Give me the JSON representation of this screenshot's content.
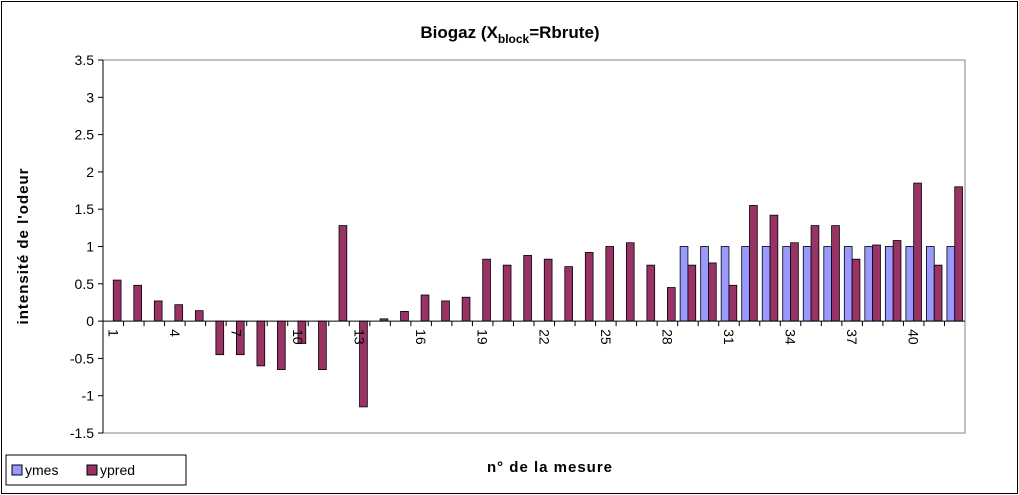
{
  "chart_data": {
    "type": "bar",
    "title_parts": [
      "Biogaz (X",
      "block",
      "=Rbrute)"
    ],
    "x_label": "n° de la mesure",
    "y_label": "intensité de l'odeur",
    "categories": [
      1,
      null,
      null,
      4,
      null,
      null,
      7,
      null,
      null,
      10,
      null,
      null,
      13,
      null,
      null,
      16,
      null,
      null,
      19,
      null,
      null,
      22,
      null,
      null,
      25,
      null,
      null,
      28,
      null,
      null,
      31,
      null,
      null,
      34,
      null,
      null,
      37,
      null,
      null,
      40,
      null,
      null
    ],
    "series": [
      {
        "name": "ymes",
        "color": "#9999ff",
        "values": [
          0,
          0,
          0,
          0,
          0,
          0,
          0,
          0,
          0,
          0,
          0,
          0,
          0,
          0,
          0,
          0,
          0,
          0,
          0,
          0,
          0,
          0,
          0,
          0,
          0,
          0,
          0,
          0,
          1,
          1,
          1,
          1,
          1,
          1,
          1,
          1,
          1,
          1,
          1,
          1,
          1,
          1
        ]
      },
      {
        "name": "ypred",
        "color": "#993366",
        "values": [
          0.55,
          0.48,
          0.27,
          0.22,
          0.14,
          -0.45,
          -0.45,
          -0.6,
          -0.65,
          -0.3,
          -0.65,
          1.28,
          -1.15,
          0.03,
          0.13,
          0.35,
          0.27,
          0.32,
          0.83,
          0.75,
          0.88,
          0.83,
          0.73,
          0.92,
          1.0,
          1.05,
          0.75,
          0.45,
          0.75,
          0.78,
          0.48,
          1.55,
          1.42,
          1.05,
          1.28,
          1.28,
          0.83,
          1.02,
          1.08,
          1.85,
          0.75,
          1.8
        ]
      }
    ],
    "ylim": [
      -1.5,
      3.5
    ],
    "yticks": [
      -1.5,
      -1,
      -0.5,
      0,
      0.5,
      1,
      1.5,
      2,
      2.5,
      3,
      3.5
    ],
    "grid": false,
    "legend": "bottom-left"
  }
}
